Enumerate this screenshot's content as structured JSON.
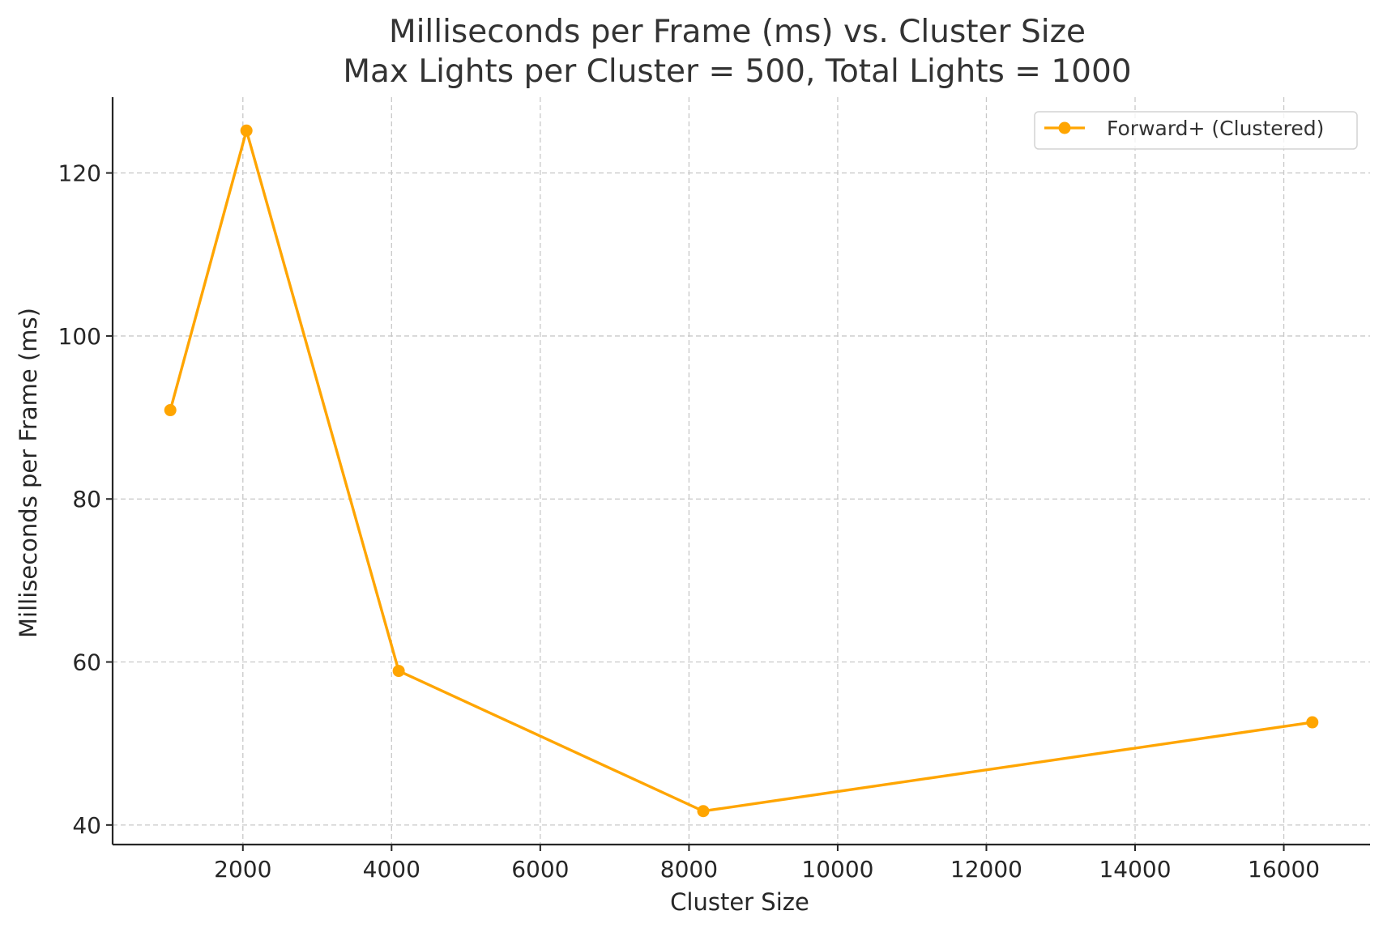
{
  "chart_data": {
    "type": "line",
    "title": "Milliseconds per Frame (ms) vs. Cluster Size",
    "subtitle": "Max Lights per Cluster = 500, Total Lights = 1000",
    "xlabel": "Cluster Size",
    "ylabel": "Milliseconds per Frame (ms)",
    "xlim": [
      248,
      17160
    ],
    "ylim": [
      37.6,
      129.3
    ],
    "xticks": [
      2000,
      4000,
      6000,
      8000,
      10000,
      12000,
      14000,
      16000
    ],
    "yticks": [
      40,
      60,
      80,
      100,
      120
    ],
    "grid": true,
    "legend_position": "top-right",
    "series": [
      {
        "name": "Forward+ (Clustered)",
        "color": "#FFA500",
        "x": [
          1024,
          2048,
          4096,
          8192,
          16384
        ],
        "y": [
          90.9,
          125.2,
          58.9,
          41.7,
          52.6
        ]
      }
    ]
  }
}
